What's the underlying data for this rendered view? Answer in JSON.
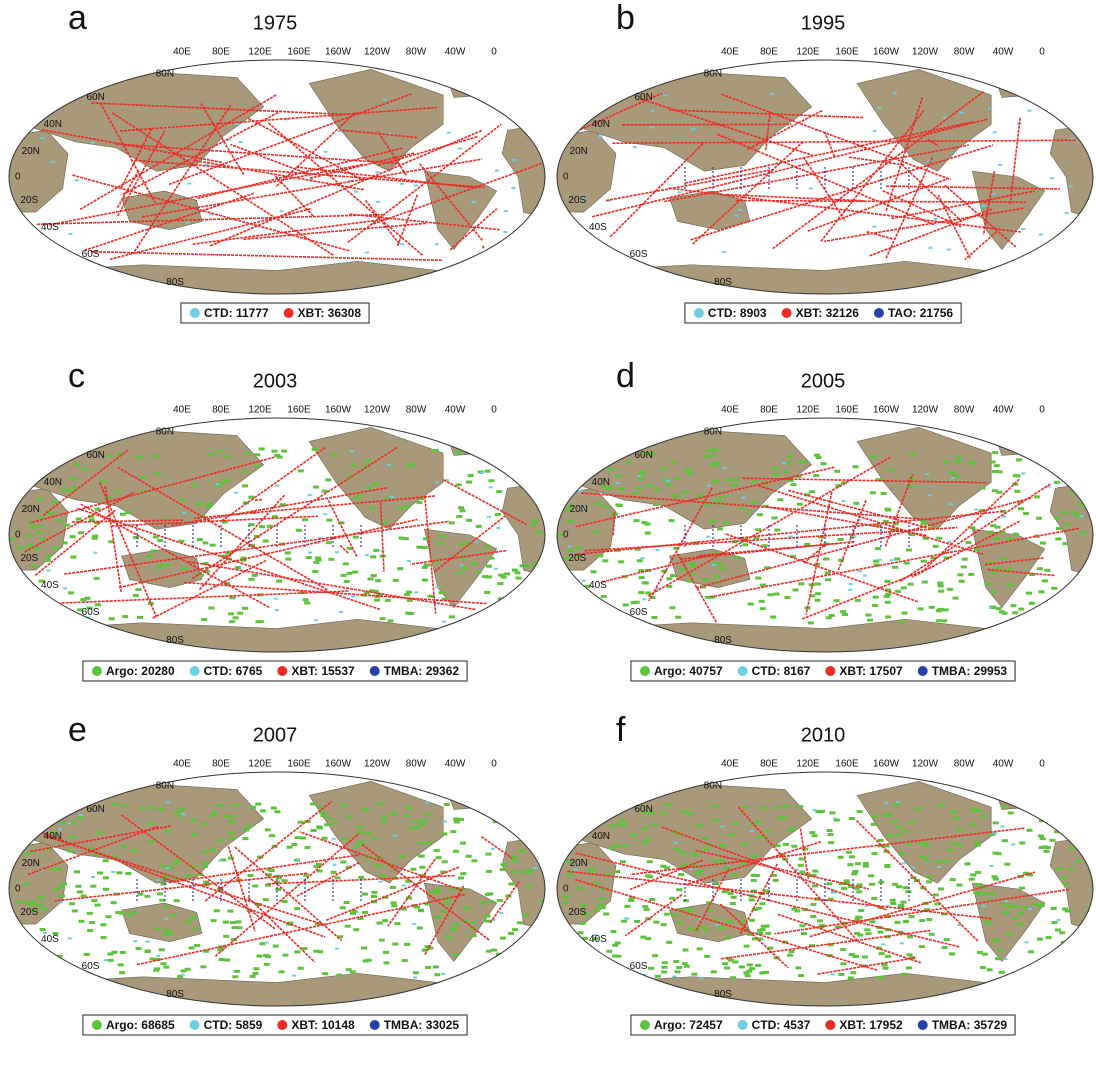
{
  "lon_labels": [
    "40E",
    "80E",
    "120E",
    "160E",
    "160W",
    "120W",
    "80W",
    "40W",
    "0"
  ],
  "lat_labels": [
    "80N",
    "60N",
    "40N",
    "20N",
    "0",
    "20S",
    "40S",
    "60S",
    "80S"
  ],
  "panels": [
    {
      "letter": "a",
      "year": "1975",
      "legend": [
        {
          "label": "CTD: 11777",
          "color": "#6ccfe3"
        },
        {
          "label": "XBT: 36308",
          "color": "#ee2a24"
        }
      ]
    },
    {
      "letter": "b",
      "year": "1995",
      "legend": [
        {
          "label": "CTD: 8903",
          "color": "#6ccfe3"
        },
        {
          "label": "XBT: 32126",
          "color": "#ee2a24"
        },
        {
          "label": "TAO: 21756",
          "color": "#2b3fa8"
        }
      ]
    },
    {
      "letter": "c",
      "year": "2003",
      "legend": [
        {
          "label": "Argo: 20280",
          "color": "#5dc23c"
        },
        {
          "label": "CTD: 6765",
          "color": "#6ccfe3"
        },
        {
          "label": "XBT: 15537",
          "color": "#ee2a24"
        },
        {
          "label": "TMBA: 29362",
          "color": "#2b3fa8"
        }
      ]
    },
    {
      "letter": "d",
      "year": "2005",
      "legend": [
        {
          "label": "Argo: 40757",
          "color": "#5dc23c"
        },
        {
          "label": "CTD: 8167",
          "color": "#6ccfe3"
        },
        {
          "label": "XBT: 17507",
          "color": "#ee2a24"
        },
        {
          "label": "TMBA: 29953",
          "color": "#2b3fa8"
        }
      ]
    },
    {
      "letter": "e",
      "year": "2007",
      "legend": [
        {
          "label": "Argo: 68685",
          "color": "#5dc23c"
        },
        {
          "label": "CTD: 5859",
          "color": "#6ccfe3"
        },
        {
          "label": "XBT: 10148",
          "color": "#ee2a24"
        },
        {
          "label": "TMBA: 33025",
          "color": "#2b3fa8"
        }
      ]
    },
    {
      "letter": "f",
      "year": "2010",
      "legend": [
        {
          "label": "Argo: 72457",
          "color": "#5dc23c"
        },
        {
          "label": "CTD: 4537",
          "color": "#6ccfe3"
        },
        {
          "label": "XBT: 17952",
          "color": "#ee2a24"
        },
        {
          "label": "TMBA: 35729",
          "color": "#2b3fa8"
        }
      ]
    }
  ]
}
